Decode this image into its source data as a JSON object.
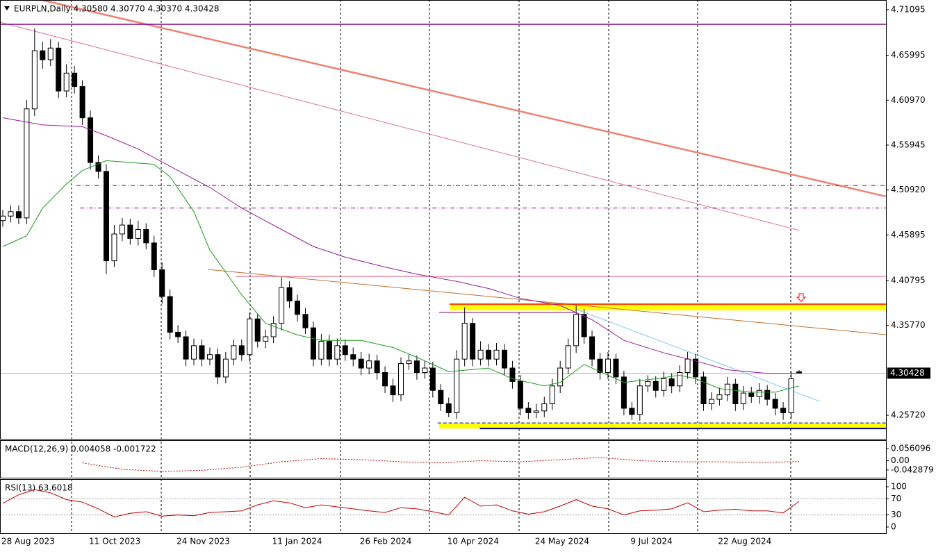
{
  "chart_data": [
    {
      "type": "candlestick",
      "title": "EURPLN,Daily 4.30580 4.30770 4.30370 4.30428",
      "categories": [
        "28 Aug 2023",
        null,
        null,
        null,
        null,
        null,
        null,
        null,
        null,
        null,
        null,
        "11 Oct 2023",
        null,
        null,
        null,
        null,
        null,
        null,
        null,
        null,
        null,
        null,
        "24 Nov 2023",
        null,
        null,
        null,
        null,
        null,
        null,
        null,
        null,
        null,
        null,
        null,
        "11 Jan 2024",
        null,
        null,
        null,
        null,
        null,
        null,
        null,
        null,
        null,
        null,
        "26 Feb 2024",
        null,
        null,
        null,
        null,
        null,
        null,
        null,
        null,
        null,
        null,
        "10 Apr 2024",
        null,
        null,
        null,
        null,
        null,
        null,
        null,
        null,
        null,
        null,
        "24 May 2024",
        null,
        null,
        null,
        null,
        null,
        null,
        null,
        null,
        null,
        null,
        null,
        "9 Jul 2024",
        null,
        null,
        null,
        null,
        null,
        null,
        null,
        null,
        null,
        null,
        "22 Aug 2024",
        null,
        null,
        null,
        null,
        null,
        null,
        null,
        null,
        null,
        null
      ],
      "open": [
        4.475,
        4.48,
        4.485,
        4.478,
        4.6,
        4.665,
        4.655,
        4.668,
        4.62,
        4.64,
        4.625,
        4.59,
        4.54,
        4.53,
        4.43,
        4.46,
        4.47,
        4.455,
        4.465,
        4.45,
        4.42,
        4.39,
        4.35,
        4.345,
        4.32,
        4.335,
        4.32,
        4.325,
        4.3,
        4.32,
        4.335,
        4.325,
        4.365,
        4.34,
        4.345,
        4.36,
        4.4,
        4.385,
        4.37,
        4.355,
        4.32,
        4.34,
        4.32,
        4.335,
        4.325,
        4.32,
        4.31,
        4.318,
        4.305,
        4.29,
        4.28,
        4.315,
        4.318,
        4.305,
        4.31,
        4.285,
        4.27,
        4.26,
        4.32,
        4.36,
        4.32,
        4.33,
        4.32,
        4.33,
        4.31,
        4.295,
        4.265,
        4.26,
        4.262,
        4.27,
        4.29,
        4.31,
        4.335,
        4.37,
        4.345,
        4.32,
        4.305,
        4.32,
        4.3,
        4.265,
        4.258,
        4.29,
        4.295,
        4.285,
        4.298,
        4.29,
        4.305,
        4.32,
        4.3,
        4.27,
        4.275,
        4.28,
        4.292,
        4.27,
        4.282,
        4.278,
        4.285,
        4.275,
        4.265,
        4.26,
        4.3058
      ],
      "high": [
        4.487,
        4.492,
        4.492,
        4.61,
        4.69,
        4.675,
        4.678,
        4.675,
        4.65,
        4.648,
        4.632,
        4.598,
        4.548,
        4.538,
        4.47,
        4.478,
        4.477,
        4.475,
        4.472,
        4.458,
        4.428,
        4.398,
        4.358,
        4.352,
        4.343,
        4.342,
        4.333,
        4.332,
        4.328,
        4.342,
        4.342,
        4.372,
        4.37,
        4.353,
        4.368,
        4.412,
        4.407,
        4.392,
        4.377,
        4.362,
        4.348,
        4.347,
        4.343,
        4.342,
        4.333,
        4.328,
        4.326,
        4.325,
        4.312,
        4.298,
        4.322,
        4.325,
        4.324,
        4.318,
        4.317,
        4.292,
        4.277,
        4.33,
        4.378,
        4.366,
        4.34,
        4.337,
        4.338,
        4.337,
        4.318,
        4.302,
        4.272,
        4.27,
        4.278,
        4.298,
        4.318,
        4.343,
        4.38,
        4.376,
        4.352,
        4.327,
        4.328,
        4.326,
        4.307,
        4.272,
        4.298,
        4.302,
        4.301,
        4.306,
        4.304,
        4.313,
        4.328,
        4.326,
        4.306,
        4.283,
        4.288,
        4.3,
        4.298,
        4.29,
        4.289,
        4.293,
        4.291,
        4.282,
        4.272,
        4.306,
        4.3077
      ],
      "low": [
        4.468,
        4.473,
        4.471,
        4.471,
        4.592,
        4.645,
        4.648,
        4.612,
        4.613,
        4.617,
        4.582,
        4.532,
        4.522,
        4.415,
        4.423,
        4.452,
        4.448,
        4.447,
        4.443,
        4.412,
        4.382,
        4.342,
        4.338,
        4.312,
        4.313,
        4.312,
        4.313,
        4.292,
        4.293,
        4.313,
        4.318,
        4.317,
        4.333,
        4.332,
        4.338,
        4.352,
        4.377,
        4.362,
        4.348,
        4.312,
        4.313,
        4.312,
        4.313,
        4.318,
        4.312,
        4.302,
        4.303,
        4.297,
        4.282,
        4.272,
        4.273,
        4.308,
        4.297,
        4.298,
        4.277,
        4.262,
        4.255,
        4.253,
        4.312,
        4.312,
        4.313,
        4.312,
        4.313,
        4.302,
        4.287,
        4.257,
        4.253,
        4.254,
        4.255,
        4.263,
        4.282,
        4.303,
        4.327,
        4.337,
        4.312,
        4.297,
        4.298,
        4.292,
        4.257,
        4.252,
        4.251,
        4.283,
        4.277,
        4.278,
        4.282,
        4.283,
        4.298,
        4.292,
        4.262,
        4.263,
        4.268,
        4.273,
        4.262,
        4.263,
        4.271,
        4.27,
        4.268,
        4.257,
        4.252,
        4.253,
        4.3037
      ],
      "close": [
        4.48,
        4.485,
        4.478,
        4.6,
        4.665,
        4.655,
        4.668,
        4.62,
        4.64,
        4.625,
        4.59,
        4.54,
        4.53,
        4.43,
        4.46,
        4.47,
        4.455,
        4.465,
        4.45,
        4.42,
        4.39,
        4.35,
        4.345,
        4.32,
        4.335,
        4.32,
        4.325,
        4.3,
        4.32,
        4.335,
        4.325,
        4.365,
        4.34,
        4.345,
        4.36,
        4.4,
        4.385,
        4.37,
        4.355,
        4.32,
        4.34,
        4.32,
        4.335,
        4.325,
        4.32,
        4.31,
        4.318,
        4.305,
        4.29,
        4.28,
        4.315,
        4.318,
        4.305,
        4.31,
        4.285,
        4.27,
        4.26,
        4.32,
        4.36,
        4.32,
        4.33,
        4.32,
        4.33,
        4.31,
        4.295,
        4.265,
        4.26,
        4.262,
        4.27,
        4.29,
        4.31,
        4.335,
        4.37,
        4.345,
        4.32,
        4.305,
        4.32,
        4.3,
        4.265,
        4.258,
        4.29,
        4.295,
        4.285,
        4.298,
        4.29,
        4.305,
        4.32,
        4.3,
        4.27,
        4.275,
        4.28,
        4.292,
        4.27,
        4.282,
        4.278,
        4.285,
        4.275,
        4.265,
        4.26,
        4.298,
        4.30428
      ],
      "ylim": [
        4.2308,
        4.7218
      ],
      "yticks": [
        4.71095,
        4.65995,
        {
          "value": 4.6097,
          "label": "4.60970"
        },
        4.55945,
        {
          "value": 4.5092,
          "label": "4.50920"
        },
        4.45895,
        4.40795,
        {
          "value": 4.3577,
          "label": "4.35770"
        },
        {
          "value": 4.2572,
          "label": "4.25720"
        }
      ],
      "current_price": {
        "value": 4.30428,
        "label": "4.30428"
      },
      "overlays": [
        {
          "color": "#1c9a1c",
          "x": [
            0,
            3,
            5,
            8,
            10,
            13,
            19,
            21,
            24,
            26,
            30,
            33,
            37,
            40,
            45,
            49,
            52,
            56,
            61,
            64,
            68,
            70,
            73,
            76,
            78,
            82,
            85,
            87,
            90,
            94,
            97,
            100
          ],
          "values": [
            4.446,
            4.458,
            4.489,
            4.516,
            4.531,
            4.542,
            4.538,
            4.524,
            4.485,
            4.442,
            4.392,
            4.36,
            4.347,
            4.341,
            4.341,
            4.333,
            4.322,
            4.306,
            4.31,
            4.298,
            4.29,
            4.294,
            4.314,
            4.302,
            4.294,
            4.298,
            4.302,
            4.298,
            4.287,
            4.283,
            4.283,
            4.29
          ]
        },
        {
          "color": "#9a1a9a",
          "x": [
            0,
            5,
            10,
            13,
            17,
            22,
            26,
            30,
            35,
            39,
            43,
            48,
            52,
            57,
            61,
            65,
            70,
            74,
            78,
            83,
            87,
            91,
            96,
            100
          ],
          "values": [
            4.59,
            4.582,
            4.58,
            4.57,
            4.555,
            4.531,
            4.512,
            4.489,
            4.465,
            4.446,
            4.434,
            4.423,
            4.415,
            4.407,
            4.399,
            4.388,
            4.38,
            4.364,
            4.341,
            4.327,
            4.318,
            4.308,
            4.304,
            4.304
          ]
        }
      ],
      "zones": [
        {
          "color": "#ffff00",
          "x": [
            56.1,
            110.9
          ],
          "values": [
            4.3815,
            4.3745
          ]
        },
        {
          "color": "#ffff00",
          "x": [
            54.8,
            110.9
          ],
          "values": [
            4.2486,
            4.2424
          ]
        }
      ],
      "trendlines": [
        {
          "color": "#f08070",
          "width": 2.5,
          "x": [
            4.89,
            110.9
          ],
          "values": [
            4.7218,
            4.502
          ]
        },
        {
          "color": "#e07090",
          "width": 1,
          "x": [
            -0.35,
            100
          ],
          "values": [
            4.697,
            4.464
          ]
        },
        {
          "color": "#800080",
          "width": 1.5,
          "x": [
            -0.35,
            110.9
          ],
          "values": [
            4.6946,
            4.6946
          ]
        },
        {
          "color": "#800080",
          "width": 1,
          "dash": "dashdot",
          "x": [
            9.25,
            110.9
          ],
          "values": [
            4.5143,
            4.5143
          ]
        },
        {
          "color": "#800080",
          "width": 1,
          "dash": "dashdot",
          "x": [
            9.7,
            110.9
          ],
          "values": [
            4.489,
            4.489
          ]
        },
        {
          "color": "#c07030",
          "width": 1,
          "x": [
            25.8,
            110.9
          ],
          "values": [
            4.4203,
            4.3473
          ]
        },
        {
          "color": "#e06080",
          "width": 1,
          "x": [
            29.3,
            110.9
          ],
          "values": [
            4.4125,
            4.4125
          ]
        },
        {
          "color": "#ff0000",
          "width": 1.5,
          "x": [
            56.1,
            110.9
          ],
          "values": [
            4.3815,
            4.3815
          ]
        },
        {
          "color": "#800080",
          "width": 1,
          "x": [
            54.8,
            72.1
          ],
          "values": [
            4.3722,
            4.3722
          ]
        },
        {
          "color": "#000080",
          "width": 1,
          "dash": "dash",
          "x": [
            54.6,
            110.9
          ],
          "values": [
            4.2486,
            4.2486
          ]
        },
        {
          "color": "#0000aa",
          "width": 2,
          "x": [
            59.9,
            110.9
          ],
          "values": [
            4.2424,
            4.2424
          ]
        },
        {
          "color": "#80c8e8",
          "width": 1,
          "x": [
            72.1,
            102.6
          ],
          "values": [
            4.3755,
            4.2727
          ]
        }
      ]
    },
    {
      "type": "line",
      "title": "MACD(12,26,9) 0.004058 -0.001722",
      "color": "#c00000",
      "x": [
        10,
        15,
        20,
        25,
        30,
        35,
        40,
        45,
        50,
        55,
        60,
        65,
        70,
        75,
        80,
        85,
        90,
        95,
        100
      ],
      "values": [
        -0.01,
        -0.04,
        -0.05,
        -0.045,
        -0.03,
        -0.005,
        0.01,
        0.005,
        -0.005,
        -0.01,
        0.0,
        -0.005,
        0.005,
        0.015,
        0.0,
        -0.005,
        -0.005,
        -0.008,
        -0.004
      ],
      "ylim": [
        -0.0792,
        0.0957
      ],
      "yticks": [
        0.056096,
        {
          "value": 0,
          "label": "0.00"
        },
        -0.042879
      ]
    },
    {
      "type": "line",
      "title": "RSI(13) 63.6018",
      "color": "#c00000",
      "x": [
        0,
        2,
        4,
        6,
        8,
        10,
        12,
        14,
        16,
        18,
        20,
        22,
        24,
        26,
        28,
        30,
        32,
        34,
        36,
        38,
        40,
        42,
        44,
        46,
        48,
        50,
        52,
        54,
        56,
        58,
        60,
        62,
        64,
        66,
        68,
        70,
        72,
        74,
        76,
        78,
        80,
        82,
        84,
        86,
        88,
        90,
        92,
        94,
        96,
        98,
        100
      ],
      "values": [
        59,
        80,
        93,
        85,
        68,
        62,
        45,
        25,
        34,
        38,
        27,
        30,
        28,
        36,
        38,
        40,
        55,
        65,
        60,
        48,
        55,
        50,
        45,
        40,
        36,
        48,
        45,
        38,
        30,
        74,
        52,
        55,
        40,
        32,
        38,
        52,
        68,
        52,
        45,
        30,
        40,
        42,
        45,
        60,
        38,
        42,
        44,
        40,
        40,
        35,
        63.6018
      ],
      "ylim": [
        -15.5,
        119
      ],
      "yticks": [
        100,
        70,
        30,
        0
      ],
      "levels": [
        70,
        30
      ]
    }
  ]
}
